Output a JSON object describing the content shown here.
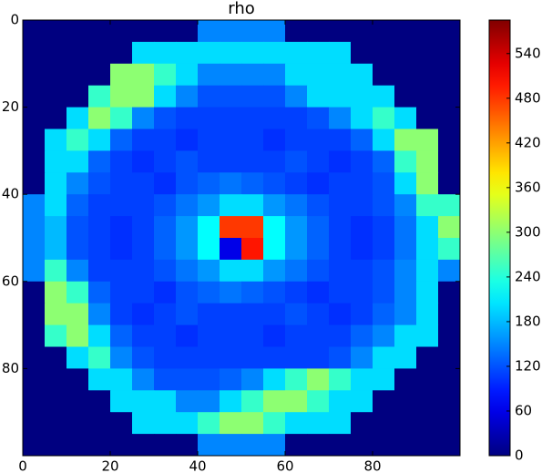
{
  "chart_data": {
    "type": "heatmap",
    "title": "rho",
    "colormap": "jet",
    "xlim": [
      0,
      100
    ],
    "ylim": [
      100,
      0
    ],
    "xticks": [
      0,
      20,
      40,
      60,
      80
    ],
    "yticks": [
      0,
      20,
      40,
      60,
      80
    ],
    "clim": [
      0,
      585
    ],
    "cticks": [
      0,
      60,
      120,
      180,
      240,
      300,
      360,
      420,
      480,
      540
    ],
    "z": [
      [
        0,
        0,
        0,
        0,
        0,
        0,
        0,
        0,
        150,
        150,
        150,
        150,
        0,
        0,
        0,
        0,
        0,
        0,
        0,
        0
      ],
      [
        0,
        0,
        0,
        0,
        0,
        200,
        200,
        200,
        200,
        200,
        200,
        200,
        200,
        200,
        200,
        0,
        0,
        0,
        0,
        0
      ],
      [
        0,
        0,
        0,
        0,
        300,
        300,
        250,
        200,
        150,
        150,
        150,
        150,
        200,
        200,
        200,
        200,
        0,
        0,
        0,
        0
      ],
      [
        0,
        0,
        0,
        250,
        300,
        300,
        200,
        150,
        120,
        120,
        120,
        120,
        150,
        200,
        200,
        200,
        200,
        0,
        0,
        0
      ],
      [
        0,
        0,
        200,
        300,
        250,
        150,
        120,
        110,
        110,
        110,
        110,
        110,
        110,
        120,
        150,
        200,
        250,
        200,
        0,
        0
      ],
      [
        0,
        200,
        250,
        200,
        130,
        110,
        110,
        100,
        110,
        110,
        110,
        100,
        110,
        110,
        110,
        130,
        200,
        300,
        300,
        0
      ],
      [
        0,
        200,
        200,
        130,
        110,
        100,
        110,
        120,
        110,
        110,
        110,
        110,
        120,
        110,
        100,
        110,
        130,
        250,
        300,
        0
      ],
      [
        0,
        200,
        150,
        120,
        110,
        110,
        100,
        120,
        130,
        140,
        130,
        120,
        110,
        100,
        110,
        110,
        120,
        200,
        300,
        0
      ],
      [
        150,
        200,
        130,
        110,
        110,
        110,
        120,
        140,
        160,
        200,
        200,
        160,
        140,
        120,
        110,
        110,
        120,
        150,
        250,
        250
      ],
      [
        150,
        180,
        120,
        110,
        100,
        110,
        130,
        160,
        220,
        480,
        480,
        220,
        160,
        130,
        110,
        100,
        110,
        140,
        200,
        300
      ],
      [
        150,
        180,
        120,
        110,
        100,
        110,
        130,
        160,
        220,
        60,
        500,
        220,
        160,
        130,
        110,
        100,
        110,
        140,
        200,
        250
      ],
      [
        150,
        250,
        150,
        110,
        110,
        110,
        120,
        140,
        160,
        200,
        200,
        160,
        140,
        120,
        110,
        110,
        120,
        150,
        200,
        150
      ],
      [
        0,
        300,
        250,
        130,
        110,
        110,
        100,
        120,
        130,
        140,
        130,
        120,
        110,
        100,
        110,
        110,
        120,
        150,
        200,
        0
      ],
      [
        0,
        300,
        300,
        150,
        110,
        100,
        110,
        120,
        110,
        110,
        110,
        110,
        120,
        110,
        100,
        110,
        130,
        150,
        200,
        0
      ],
      [
        0,
        250,
        300,
        200,
        130,
        110,
        110,
        100,
        110,
        110,
        110,
        100,
        110,
        110,
        110,
        130,
        150,
        200,
        200,
        0
      ],
      [
        0,
        0,
        200,
        250,
        150,
        120,
        110,
        110,
        110,
        110,
        110,
        110,
        110,
        110,
        120,
        150,
        200,
        200,
        0,
        0
      ],
      [
        0,
        0,
        0,
        200,
        200,
        150,
        120,
        120,
        120,
        130,
        150,
        200,
        250,
        300,
        250,
        200,
        200,
        0,
        0,
        0
      ],
      [
        0,
        0,
        0,
        0,
        200,
        200,
        200,
        150,
        150,
        200,
        250,
        300,
        300,
        250,
        200,
        200,
        0,
        0,
        0,
        0
      ],
      [
        0,
        0,
        0,
        0,
        0,
        200,
        200,
        200,
        250,
        300,
        300,
        250,
        200,
        200,
        200,
        0,
        0,
        0,
        0,
        0
      ],
      [
        0,
        0,
        0,
        0,
        0,
        0,
        0,
        0,
        150,
        150,
        150,
        150,
        0,
        0,
        0,
        0,
        0,
        0,
        0,
        0
      ]
    ]
  }
}
